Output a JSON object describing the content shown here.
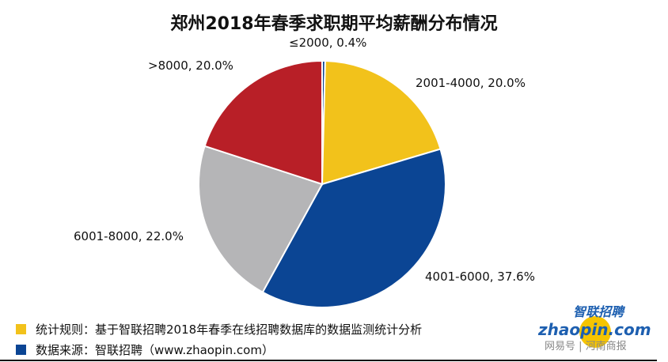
{
  "chart_data": {
    "type": "pie",
    "title": "郑州2018年春季求职期平均薪酬分布情况",
    "unit": "%",
    "slices": [
      {
        "label": "≤2000",
        "value": 0.4,
        "text": "≤2000, 0.4%",
        "color": "#0b4594"
      },
      {
        "label": "2001-4000",
        "value": 20.0,
        "text": "2001-4000, 20.0%",
        "color": "#f2c21b"
      },
      {
        "label": "4001-6000",
        "value": 37.6,
        "text": "4001-6000, 37.6%",
        "color": "#0b4594"
      },
      {
        "label": "6001-8000",
        "value": 22.0,
        "text": "6001-8000, 22.0%",
        "color": "#b5b5b7"
      },
      {
        "label": ">8000",
        "value": 20.0,
        "text": ">8000, 20.0%",
        "color": "#b81f27"
      }
    ],
    "start": "top, clockwise"
  },
  "legend": [
    {
      "text": "统计规则：基于智联招聘2018年春季在线招聘数据库的数据监测统计分析",
      "color": "#f2c21b"
    },
    {
      "text": "数据来源：智联招聘（www.zhaopin.com）",
      "color": "#0b4594"
    }
  ],
  "logo": {
    "brand_cn": "智联招聘",
    "brand_en": "zhaopin.com",
    "watermark": "网易号 | 河南商报"
  }
}
